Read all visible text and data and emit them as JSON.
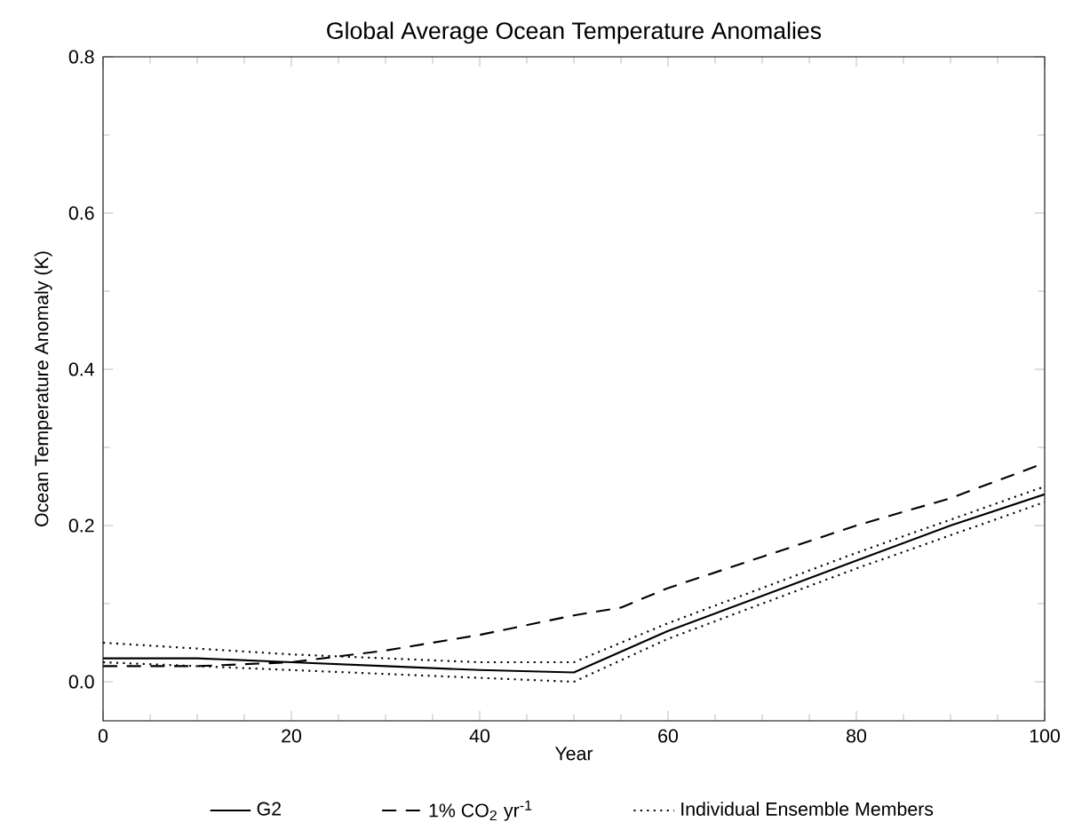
{
  "chart_data": {
    "type": "line",
    "title": "Global Average Ocean Temperature Anomalies",
    "xlabel": "Year",
    "ylabel": "Ocean Temperature Anomaly (K)",
    "xlim": [
      0,
      100
    ],
    "ylim": [
      -0.05,
      0.8
    ],
    "xticks": [
      0,
      20,
      40,
      60,
      80,
      100
    ],
    "yticks": [
      {
        "value": 0,
        "label": "0.0"
      },
      {
        "value": 0.2,
        "label": "0.2"
      },
      {
        "value": 0.4,
        "label": "0.4"
      },
      {
        "value": 0.6,
        "label": "0.6"
      },
      {
        "value": 0.8,
        "label": "0.8"
      }
    ],
    "legend": "bottom",
    "grid": false,
    "series": [
      {
        "name": "G2",
        "color": "#000000",
        "line_style": "solid",
        "x": [
          0,
          10,
          20,
          30,
          40,
          50,
          60,
          70,
          80,
          90,
          100
        ],
        "values": [
          0.03,
          0.03,
          0.025,
          0.02,
          0.015,
          0.012,
          0.065,
          0.11,
          0.155,
          0.2,
          0.24
        ]
      },
      {
        "name": "1% CO$_{2}$ yr$^{-1}$",
        "color": "#000000",
        "line_style": "dashed",
        "x": [
          0,
          10,
          20,
          30,
          40,
          50,
          55,
          60,
          70,
          80,
          90,
          100
        ],
        "values": [
          0.02,
          0.02,
          0.025,
          0.04,
          0.06,
          0.085,
          0.095,
          0.12,
          0.16,
          0.2,
          0.235,
          0.28
        ]
      },
      {
        "name": "Individual Ensemble Members",
        "color": "#000000",
        "line_style": "dotted",
        "x": [
          0,
          20,
          40,
          50,
          60,
          80,
          100
        ],
        "values": [
          0.05,
          0.035,
          0.025,
          0.025,
          0.075,
          0.165,
          0.25
        ]
      },
      {
        "color": "#000000",
        "line_style": "dotted",
        "x": [
          0,
          20,
          40,
          50,
          60,
          80,
          100
        ],
        "values": [
          0.025,
          0.015,
          0.005,
          0.0,
          0.055,
          0.145,
          0.23
        ]
      }
    ]
  }
}
